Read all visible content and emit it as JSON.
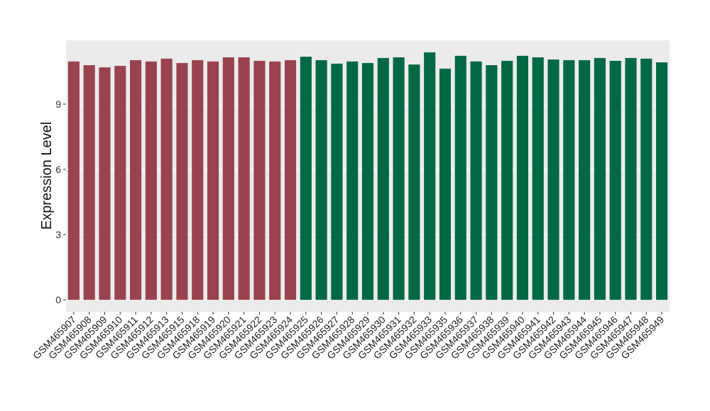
{
  "chart_data": {
    "type": "bar",
    "y_label": "Expression Level",
    "categories": [
      "GSM465907",
      "GSM465908",
      "GSM465909",
      "GSM465910",
      "GSM465911",
      "GSM465912",
      "GSM465913",
      "GSM465915",
      "GSM465918",
      "GSM465919",
      "GSM465920",
      "GSM465921",
      "GSM465922",
      "GSM465923",
      "GSM465924",
      "GSM465925",
      "GSM465926",
      "GSM465927",
      "GSM465928",
      "GSM465929",
      "GSM465930",
      "GSM465931",
      "GSM465932",
      "GSM465933",
      "GSM465935",
      "GSM465936",
      "GSM465937",
      "GSM465938",
      "GSM465939",
      "GSM465940",
      "GSM465941",
      "GSM465942",
      "GSM465943",
      "GSM465944",
      "GSM465945",
      "GSM465946",
      "GSM465947",
      "GSM465948",
      "GSM465949"
    ],
    "values": [
      10.96,
      10.79,
      10.69,
      10.76,
      11.02,
      10.96,
      11.09,
      10.89,
      11.02,
      10.96,
      11.15,
      11.15,
      10.99,
      10.96,
      11.02,
      11.18,
      11.02,
      10.86,
      10.96,
      10.89,
      11.12,
      11.15,
      10.82,
      11.38,
      10.63,
      11.22,
      10.96,
      10.79,
      10.99,
      11.22,
      11.15,
      11.05,
      11.02,
      11.02,
      11.12,
      10.99,
      11.12,
      11.09,
      10.92
    ],
    "colors": [
      "#9a4350",
      "#9a4350",
      "#9a4350",
      "#9a4350",
      "#9a4350",
      "#9a4350",
      "#9a4350",
      "#9a4350",
      "#9a4350",
      "#9a4350",
      "#9a4350",
      "#9a4350",
      "#9a4350",
      "#9a4350",
      "#9a4350",
      "#006843",
      "#006843",
      "#006843",
      "#006843",
      "#006843",
      "#006843",
      "#006843",
      "#006843",
      "#006843",
      "#006843",
      "#006843",
      "#006843",
      "#006843",
      "#006843",
      "#006843",
      "#006843",
      "#006843",
      "#006843",
      "#006843",
      "#006843",
      "#006843",
      "#006843",
      "#006843",
      "#006843"
    ],
    "ylim": [
      -0.55,
      11.93
    ],
    "yticks": [
      0,
      3,
      6,
      9
    ],
    "grid": true,
    "background": "#ebebeb"
  }
}
